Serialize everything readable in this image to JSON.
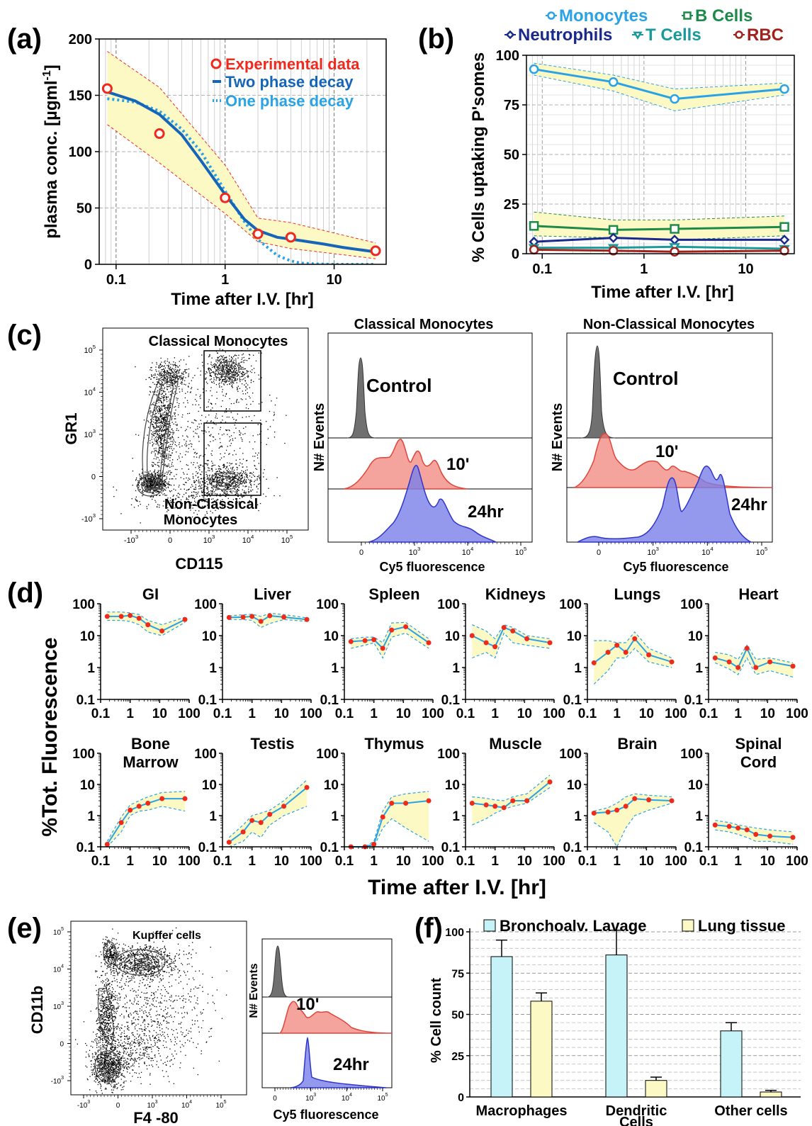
{
  "panel_labels": {
    "a": "(a)",
    "b": "(b)",
    "c": "(c)",
    "d": "(d)",
    "e": "(e)",
    "f": "(f)"
  },
  "colors": {
    "band_fill": "#fdf9c4",
    "red_point": "#ee2a1d",
    "blue_line": "#1565b8",
    "light_blue": "#29a2e6",
    "monocytes": "#29a2e6",
    "neutrophils": "#1a2a8c",
    "bcells": "#1e8a4a",
    "tcells": "#1a9a9a",
    "rbc": "#a0221c",
    "hist_gray": "#707070",
    "hist_red": "#ef7e72",
    "hist_blue": "#7a7fe8",
    "bar_bal": "#c5f3f7",
    "bar_lung": "#fdf9c4"
  },
  "chart_data": [
    {
      "id": "a",
      "type": "line",
      "xlabel": "Time after I.V. [hr]",
      "ylabel_main": "plasma conc. [µgml",
      "ylabel_sup": "-1",
      "ylabel_end": "]",
      "xscale": "log",
      "xlim": [
        0.07,
        30
      ],
      "ylim": [
        0,
        200
      ],
      "xticks": [
        {
          "v": 0.1,
          "label": "0.1"
        },
        {
          "v": 1,
          "label": "1"
        },
        {
          "v": 10,
          "label": "10"
        }
      ],
      "yticks": [
        {
          "v": 0,
          "label": "0"
        },
        {
          "v": 50,
          "label": "50"
        },
        {
          "v": 100,
          "label": "100"
        },
        {
          "v": 150,
          "label": "150"
        },
        {
          "v": 200,
          "label": "200"
        }
      ],
      "legend": [
        "Experimental data",
        "Two phase decay",
        "One phase decay"
      ],
      "experimental": {
        "x": [
          0.083,
          0.25,
          1,
          2,
          4,
          24
        ],
        "y": [
          156,
          116,
          59,
          27,
          24,
          12
        ]
      },
      "two_phase": {
        "x": [
          0.083,
          0.15,
          0.25,
          0.4,
          0.6,
          1.0,
          1.5,
          2.0,
          3.0,
          5.0,
          8.0,
          12.0,
          24.0
        ],
        "y": [
          153,
          145,
          133,
          115,
          92,
          62,
          40,
          30,
          24,
          21,
          18,
          15,
          11
        ]
      },
      "one_phase": {
        "x": [
          0.083,
          0.15,
          0.25,
          0.4,
          0.6,
          1.0,
          1.5,
          2.0,
          3.0,
          4.0,
          5.0,
          7.0,
          10.0,
          24.0
        ],
        "y": [
          147,
          144,
          136,
          120,
          100,
          65,
          38,
          22,
          8,
          3,
          1,
          0.3,
          0,
          0
        ]
      },
      "band_upper": {
        "x": [
          0.083,
          0.25,
          1,
          2,
          4,
          24
        ],
        "y": [
          189,
          157,
          88,
          41,
          37,
          19
        ]
      },
      "band_lower": {
        "x": [
          0.083,
          0.25,
          1,
          2,
          4,
          24
        ],
        "y": [
          124,
          90,
          45,
          20,
          14,
          5
        ]
      }
    },
    {
      "id": "b",
      "type": "line",
      "xlabel": "Time after I.V. [hr]",
      "ylabel": "% Cells uptaking P'somes",
      "xscale": "log",
      "xlim": [
        0.07,
        30
      ],
      "ylim": [
        0,
        100
      ],
      "xticks": [
        {
          "v": 0.1,
          "label": "0.1"
        },
        {
          "v": 1,
          "label": "1"
        },
        {
          "v": 10,
          "label": "10"
        }
      ],
      "yticks": [
        {
          "v": 0,
          "label": "0"
        },
        {
          "v": 25,
          "label": "25"
        },
        {
          "v": 50,
          "label": "50"
        },
        {
          "v": 75,
          "label": "75"
        },
        {
          "v": 100,
          "label": "100"
        }
      ],
      "x": [
        0.083,
        0.5,
        2,
        24
      ],
      "series": [
        {
          "name": "Monocytes",
          "marker": "circle",
          "color": "#29a2e6",
          "values": [
            93,
            86.5,
            78,
            83
          ],
          "upper": [
            96,
            90,
            83,
            86
          ],
          "lower": [
            90,
            82,
            72,
            80
          ]
        },
        {
          "name": "B Cells",
          "marker": "square",
          "color": "#1e8a4a",
          "values": [
            14,
            12,
            12.5,
            13.5
          ],
          "upper": [
            21,
            17,
            17,
            19
          ],
          "lower": [
            9,
            8,
            7,
            9
          ]
        },
        {
          "name": "Neutrophils",
          "marker": "diamond",
          "color": "#1a2a8c",
          "values": [
            6,
            8,
            7,
            7
          ],
          "upper": [
            8,
            11,
            10,
            9
          ],
          "lower": [
            4,
            5,
            5,
            5
          ]
        },
        {
          "name": "T Cells",
          "marker": "triangle",
          "color": "#1a9a9a",
          "values": [
            3,
            3,
            3.5,
            2.5
          ],
          "upper": [
            4,
            4,
            4.5,
            3.5
          ],
          "lower": [
            2,
            2,
            2,
            1.5
          ]
        },
        {
          "name": "RBC",
          "marker": "circle",
          "color": "#a0221c",
          "values": [
            2,
            1.5,
            1,
            1.5
          ],
          "upper": [
            3,
            2.5,
            2,
            2.5
          ],
          "lower": [
            1,
            1,
            0.5,
            1
          ]
        }
      ]
    },
    {
      "id": "c_scatter",
      "type": "scatter",
      "xlabel": "CD115",
      "ylabel": "GR1",
      "xticks": [
        "-10",
        "0",
        "10",
        "10",
        "10"
      ],
      "xtick_exp": [
        "3",
        "",
        "3",
        "4",
        "5"
      ],
      "yticks": [
        "-10",
        "0",
        "10",
        "10",
        "10"
      ],
      "ytick_exp": [
        "3",
        "",
        "3",
        "4",
        "5"
      ],
      "gates": [
        "Classical Monocytes",
        "Non-Classical",
        "Monocytes"
      ]
    },
    {
      "id": "c_hist1",
      "type": "area",
      "title": "Classical Monocytes",
      "xlabel": "Cy5 fluorescence",
      "ylabel": "N# Events",
      "labels": [
        "Control",
        "10'",
        "24hr"
      ],
      "xticks": [
        "0",
        "10",
        "10",
        "10"
      ],
      "xtick_exp": [
        "",
        "3",
        "4",
        "5"
      ]
    },
    {
      "id": "c_hist2",
      "type": "area",
      "title": "Non-Classical Monocytes",
      "xlabel": "Cy5 fluorescence",
      "ylabel": "N# Events",
      "labels": [
        "Control",
        "10'",
        "24hr"
      ],
      "xticks": [
        "0",
        "10",
        "10",
        "10"
      ],
      "xtick_exp": [
        "",
        "3",
        "4",
        "5"
      ]
    },
    {
      "id": "d",
      "type": "line",
      "yscale": "log",
      "xscale": "log",
      "ylabel": "%Tot. Fluorescence",
      "xlabel": "Time after I.V. [hr]",
      "xticks": [
        "0.1",
        "1",
        "10",
        "100"
      ],
      "yticks": [
        "0.1",
        "1",
        "10",
        "100"
      ],
      "x": [
        0.167,
        0.5,
        1,
        2,
        4,
        12,
        72
      ],
      "organs": [
        {
          "name": "GI",
          "name2": "",
          "y": [
            40,
            40,
            43,
            35,
            22,
            14,
            32
          ],
          "upper": [
            55,
            55,
            52,
            46,
            30,
            22,
            38
          ],
          "lower": [
            30,
            30,
            28,
            22,
            13,
            10,
            26
          ]
        },
        {
          "name": "Liver",
          "name2": "",
          "y": [
            37,
            38,
            40,
            28,
            42,
            38,
            32
          ],
          "upper": [
            42,
            45,
            47,
            40,
            50,
            46,
            36
          ],
          "lower": [
            32,
            32,
            30,
            18,
            24,
            32,
            28
          ]
        },
        {
          "name": "Spleen",
          "name2": "",
          "y": [
            6.5,
            7,
            7.5,
            4,
            15,
            19,
            6
          ],
          "upper": [
            8,
            9,
            9,
            6,
            25,
            26,
            8
          ],
          "lower": [
            4,
            5,
            6,
            2,
            9,
            12,
            4
          ]
        },
        {
          "name": "Kidneys",
          "name2": "",
          "y": [
            10,
            6,
            4.5,
            18,
            14,
            8,
            6
          ],
          "upper": [
            22,
            14,
            8,
            22,
            18,
            10,
            8
          ],
          "lower": [
            2,
            3,
            2,
            12,
            6,
            5,
            4
          ]
        },
        {
          "name": "Lungs",
          "name2": "",
          "y": [
            1.4,
            3,
            5,
            3,
            8,
            2.5,
            1.5
          ],
          "upper": [
            7,
            7,
            6,
            6,
            13,
            4,
            2
          ],
          "lower": [
            0.3,
            0.8,
            2,
            2,
            4,
            1.5,
            1
          ]
        },
        {
          "name": "Heart",
          "name2": "",
          "y": [
            2,
            1.5,
            1,
            4,
            1,
            1.5,
            1.1
          ],
          "upper": [
            3,
            2.5,
            1.8,
            5,
            1.8,
            2,
            1.4
          ],
          "lower": [
            1.4,
            0.9,
            0.6,
            2,
            0.6,
            0.8,
            0.5
          ]
        },
        {
          "name": "Bone",
          "name2": "Marrow",
          "y": [
            0.12,
            0.6,
            1.5,
            2,
            2.5,
            3.5,
            3.5
          ],
          "upper": [
            0.15,
            0.9,
            2.2,
            3,
            4,
            5.5,
            6
          ],
          "lower": [
            0.1,
            0.3,
            1,
            1.4,
            1.5,
            2,
            1.4
          ]
        },
        {
          "name": "Testis",
          "name2": "",
          "y": [
            0.14,
            0.3,
            0.7,
            0.6,
            1.1,
            2,
            8
          ],
          "upper": [
            0.2,
            0.5,
            1,
            1.2,
            1.5,
            3,
            14
          ],
          "lower": [
            0.1,
            0.15,
            0.3,
            0.2,
            0.5,
            1,
            2
          ]
        },
        {
          "name": "Thymus",
          "name2": "",
          "y": [
            0.1,
            0.1,
            0.12,
            0.9,
            2.5,
            2.5,
            3
          ],
          "upper": [
            0.1,
            0.1,
            0.15,
            1.4,
            4,
            5,
            6
          ],
          "lower": [
            0.1,
            0.1,
            0.1,
            0.4,
            0.8,
            0.4,
            0.15
          ]
        },
        {
          "name": "Muscle",
          "name2": "",
          "y": [
            2.5,
            2.2,
            2,
            1.8,
            3,
            3,
            12
          ],
          "upper": [
            4,
            3.6,
            3.2,
            3,
            4,
            5,
            20
          ],
          "lower": [
            0.5,
            0.8,
            1.2,
            1.6,
            2,
            2.5,
            8
          ]
        },
        {
          "name": "Brain",
          "name2": "",
          "y": [
            1.2,
            1.3,
            1.5,
            2,
            3.5,
            3.2,
            3
          ],
          "upper": [
            1.4,
            1.8,
            2.5,
            4,
            5,
            4.5,
            4
          ],
          "lower": [
            0.6,
            0.3,
            0.1,
            0.4,
            1,
            1.5,
            2.5
          ]
        },
        {
          "name": "Spinal",
          "name2": "Cord",
          "y": [
            0.5,
            0.45,
            0.4,
            0.35,
            0.25,
            0.22,
            0.2
          ],
          "upper": [
            0.7,
            0.6,
            0.5,
            0.45,
            0.4,
            0.35,
            0.3
          ],
          "lower": [
            0.35,
            0.3,
            0.25,
            0.2,
            0.15,
            0.15,
            0.12
          ]
        }
      ]
    },
    {
      "id": "e_scatter",
      "type": "scatter",
      "xlabel": "F4 -80",
      "ylabel": "CD11b",
      "gate": "Kupffer cells",
      "xticks": [
        "-10",
        "0",
        "10",
        "10",
        "10"
      ],
      "xtick_exp": [
        "3",
        "",
        "3",
        "4",
        "5"
      ],
      "yticks": [
        "-10",
        "0",
        "10",
        "10",
        "10"
      ],
      "ytick_exp": [
        "3",
        "",
        "3",
        "4",
        "5"
      ]
    },
    {
      "id": "e_hist",
      "type": "area",
      "xlabel": "Cy5 fluorescence",
      "ylabel": "N# Events",
      "labels": [
        "10'",
        "24hr"
      ],
      "xticks": [
        "0",
        "10",
        "10",
        "10"
      ],
      "xtick_exp": [
        "",
        "3",
        "4",
        "5"
      ]
    },
    {
      "id": "f",
      "type": "bar",
      "ylabel": "% Cell count",
      "categories": [
        "Macrophages",
        "Dendritic Cells",
        "Other cells"
      ],
      "category_lines": [
        [
          "Macrophages"
        ],
        [
          "Dendritic",
          "Cells"
        ],
        [
          "Other cells"
        ]
      ],
      "ylim": [
        0,
        100
      ],
      "yticks": [
        {
          "v": 0,
          "label": "0"
        },
        {
          "v": 25,
          "label": "25"
        },
        {
          "v": 50,
          "label": "50"
        },
        {
          "v": 75,
          "label": "75"
        },
        {
          "v": 100,
          "label": "100"
        }
      ],
      "series": [
        {
          "name": "Bronchoalv. Lavage",
          "color": "#c5f3f7",
          "values": [
            85,
            86,
            40
          ],
          "errors": [
            10,
            15,
            5
          ]
        },
        {
          "name": "Lung tissue",
          "color": "#fdf9c4",
          "values": [
            58,
            10,
            3
          ],
          "errors": [
            5,
            2,
            1
          ]
        }
      ]
    }
  ]
}
